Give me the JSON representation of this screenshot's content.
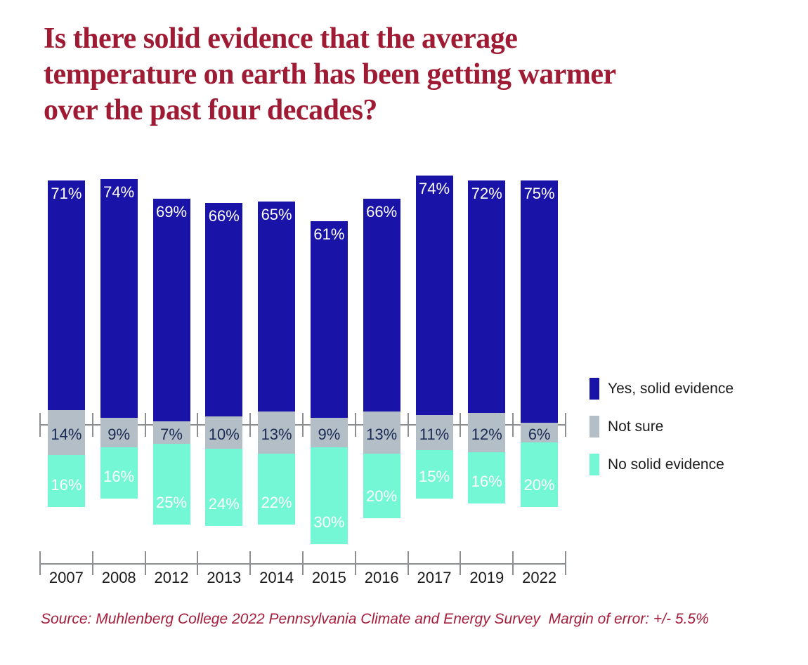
{
  "title_lines": [
    "Is there solid evidence that the average",
    "temperature on earth has been getting warmer",
    "over the past four decades?"
  ],
  "source_note": "Source: Muhlenberg College 2022 Pennsylvania Climate and Energy Survey  Margin of error: +/- 5.5%",
  "legend": {
    "items": [
      {
        "key": "yes",
        "label": "Yes, solid evidence"
      },
      {
        "key": "not_sure",
        "label": "Not sure"
      },
      {
        "key": "no",
        "label": "No solid evidence"
      }
    ]
  },
  "colors": {
    "yes": "#1a13a7",
    "not_sure": "#b3bec6",
    "no": "#74f7d4",
    "title": "#9e1b33",
    "source": "#a51d3b",
    "axis": "#8b8f92",
    "label_on_color": "#ffffff",
    "label_on_gray": "#1b2a55",
    "year_label": "#1a1a1a",
    "legend_text": "#1d1d1d"
  },
  "chart_data": {
    "type": "bar",
    "variant": "diverging-stacked-column",
    "title": "Is there solid evidence that the average temperature on earth has been getting warmer over the past four decades?",
    "categories": [
      "2007",
      "2008",
      "2012",
      "2013",
      "2014",
      "2015",
      "2016",
      "2017",
      "2019",
      "2022"
    ],
    "series": [
      {
        "key": "yes",
        "name": "Yes, solid evidence",
        "values": [
          71,
          74,
          69,
          66,
          65,
          61,
          66,
          74,
          72,
          75
        ]
      },
      {
        "key": "not_sure",
        "name": "Not sure",
        "values": [
          14,
          9,
          7,
          10,
          13,
          9,
          13,
          11,
          12,
          6
        ]
      },
      {
        "key": "no",
        "name": "No solid evidence",
        "values": [
          16,
          16,
          25,
          24,
          22,
          30,
          20,
          15,
          16,
          20
        ]
      }
    ],
    "value_unit": "%",
    "data_labels": "inside, formatted as percent",
    "legend_position": "right",
    "grid": false,
    "axes_note": "no value axis; horizontal baseline with tick marks runs through the Not-sure band, and a category axis with tick marks sits below the bars"
  }
}
